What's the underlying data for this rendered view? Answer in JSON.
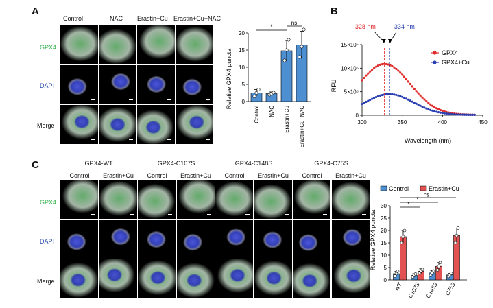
{
  "panelA": {
    "letter": "A",
    "columns": [
      "Control",
      "NAC",
      "Erastin+Cu",
      "Erastin+Cu+NAC"
    ],
    "rows": [
      "GPX4",
      "DAPI",
      "Merge"
    ]
  },
  "panelB": {
    "letter": "B"
  },
  "panelC": {
    "letter": "C",
    "groups": [
      "GPX4-WT",
      "GPX4-C107S",
      "GPX4-C148S",
      "GPX4-C75S"
    ],
    "subcolumns": [
      "Control",
      "Erastin+Cu"
    ],
    "rows": [
      "GPX4",
      "DAPI",
      "Merge"
    ]
  },
  "chart_data": [
    {
      "type": "bar",
      "ylabel": "Relative GPX4 puncta",
      "categories": [
        "Control",
        "NAC",
        "Erastin+Cu",
        "Erastin+Cu+NAC"
      ],
      "values": [
        2.5,
        2.3,
        14.8,
        16.5
      ],
      "errors": [
        1.0,
        0.5,
        3.0,
        4.0
      ],
      "points": [
        [
          1.5,
          2.5,
          3.5
        ],
        [
          2.0,
          2.3,
          2.6
        ],
        [
          12,
          15,
          18
        ],
        [
          13,
          16,
          21
        ]
      ],
      "ylim": [
        0,
        20
      ],
      "yticks": [
        0,
        5,
        10,
        15,
        20
      ],
      "color": "#4d8fd1",
      "significance": [
        {
          "from": 0,
          "to": 2,
          "label": "*"
        },
        {
          "from": 2,
          "to": 3,
          "label": "ns"
        }
      ]
    },
    {
      "type": "line",
      "ylabel": "RFU",
      "xlabel": "Wavelength (nm)",
      "xlim": [
        300,
        450
      ],
      "xticks": [
        300,
        350,
        400,
        450
      ],
      "ylim": [
        0,
        1500000
      ],
      "yticks": [
        0,
        500000,
        1000000,
        1500000
      ],
      "ytick_labels": [
        "0",
        "5×10⁵",
        "10×10⁵",
        "15×10⁵"
      ],
      "peaks": [
        {
          "x": 328,
          "label": "328 nm",
          "color": "#e02a2a"
        },
        {
          "x": 334,
          "label": "334 nm",
          "color": "#2a3fb0"
        }
      ],
      "series": [
        {
          "name": "GPX4",
          "color": "#e02a2a",
          "peak_x": 328,
          "peak_y": 1080000,
          "width": 32
        },
        {
          "name": "GPX4+Cu",
          "color": "#2a3fb0",
          "peak_x": 334,
          "peak_y": 440000,
          "width": 30
        }
      ]
    },
    {
      "type": "bar",
      "ylabel": "Relative GPX4 puncta",
      "categories": [
        "WT",
        "C107S",
        "C148S",
        "C75S"
      ],
      "series": [
        {
          "name": "Control",
          "color": "#4d8fd1",
          "values": [
            2.5,
            1.8,
            2.8,
            2.0
          ],
          "errors": [
            1.0,
            0.7,
            1.0,
            0.6
          ],
          "points": [
            [
              1.5,
              2.5,
              3.5
            ],
            [
              1.2,
              1.8,
              2.4
            ],
            [
              1.8,
              2.8,
              3.6
            ],
            [
              1.4,
              2.0,
              2.6
            ]
          ]
        },
        {
          "name": "Erastin+Cu",
          "color": "#e35252",
          "values": [
            17.5,
            3.5,
            5.5,
            18.0
          ],
          "errors": [
            2.5,
            1.0,
            1.5,
            3.0
          ],
          "points": [
            [
              15,
              17.5,
              20
            ],
            [
              2.8,
              3.5,
              4.2
            ],
            [
              4,
              5.5,
              7
            ],
            [
              15,
              18,
              21
            ]
          ]
        }
      ],
      "ylim": [
        0,
        30
      ],
      "yticks": [
        0,
        5,
        10,
        15,
        20,
        25,
        30
      ],
      "legend": "top",
      "significance": [
        {
          "from": 0,
          "to": 1,
          "label": "*"
        },
        {
          "from": 0,
          "to": 2,
          "label": "*"
        },
        {
          "from": 0,
          "to": 3,
          "label": "ns"
        }
      ]
    }
  ],
  "colors": {
    "gpx4_label": "#2fb24a",
    "dapi_label": "#2b4ea8"
  }
}
